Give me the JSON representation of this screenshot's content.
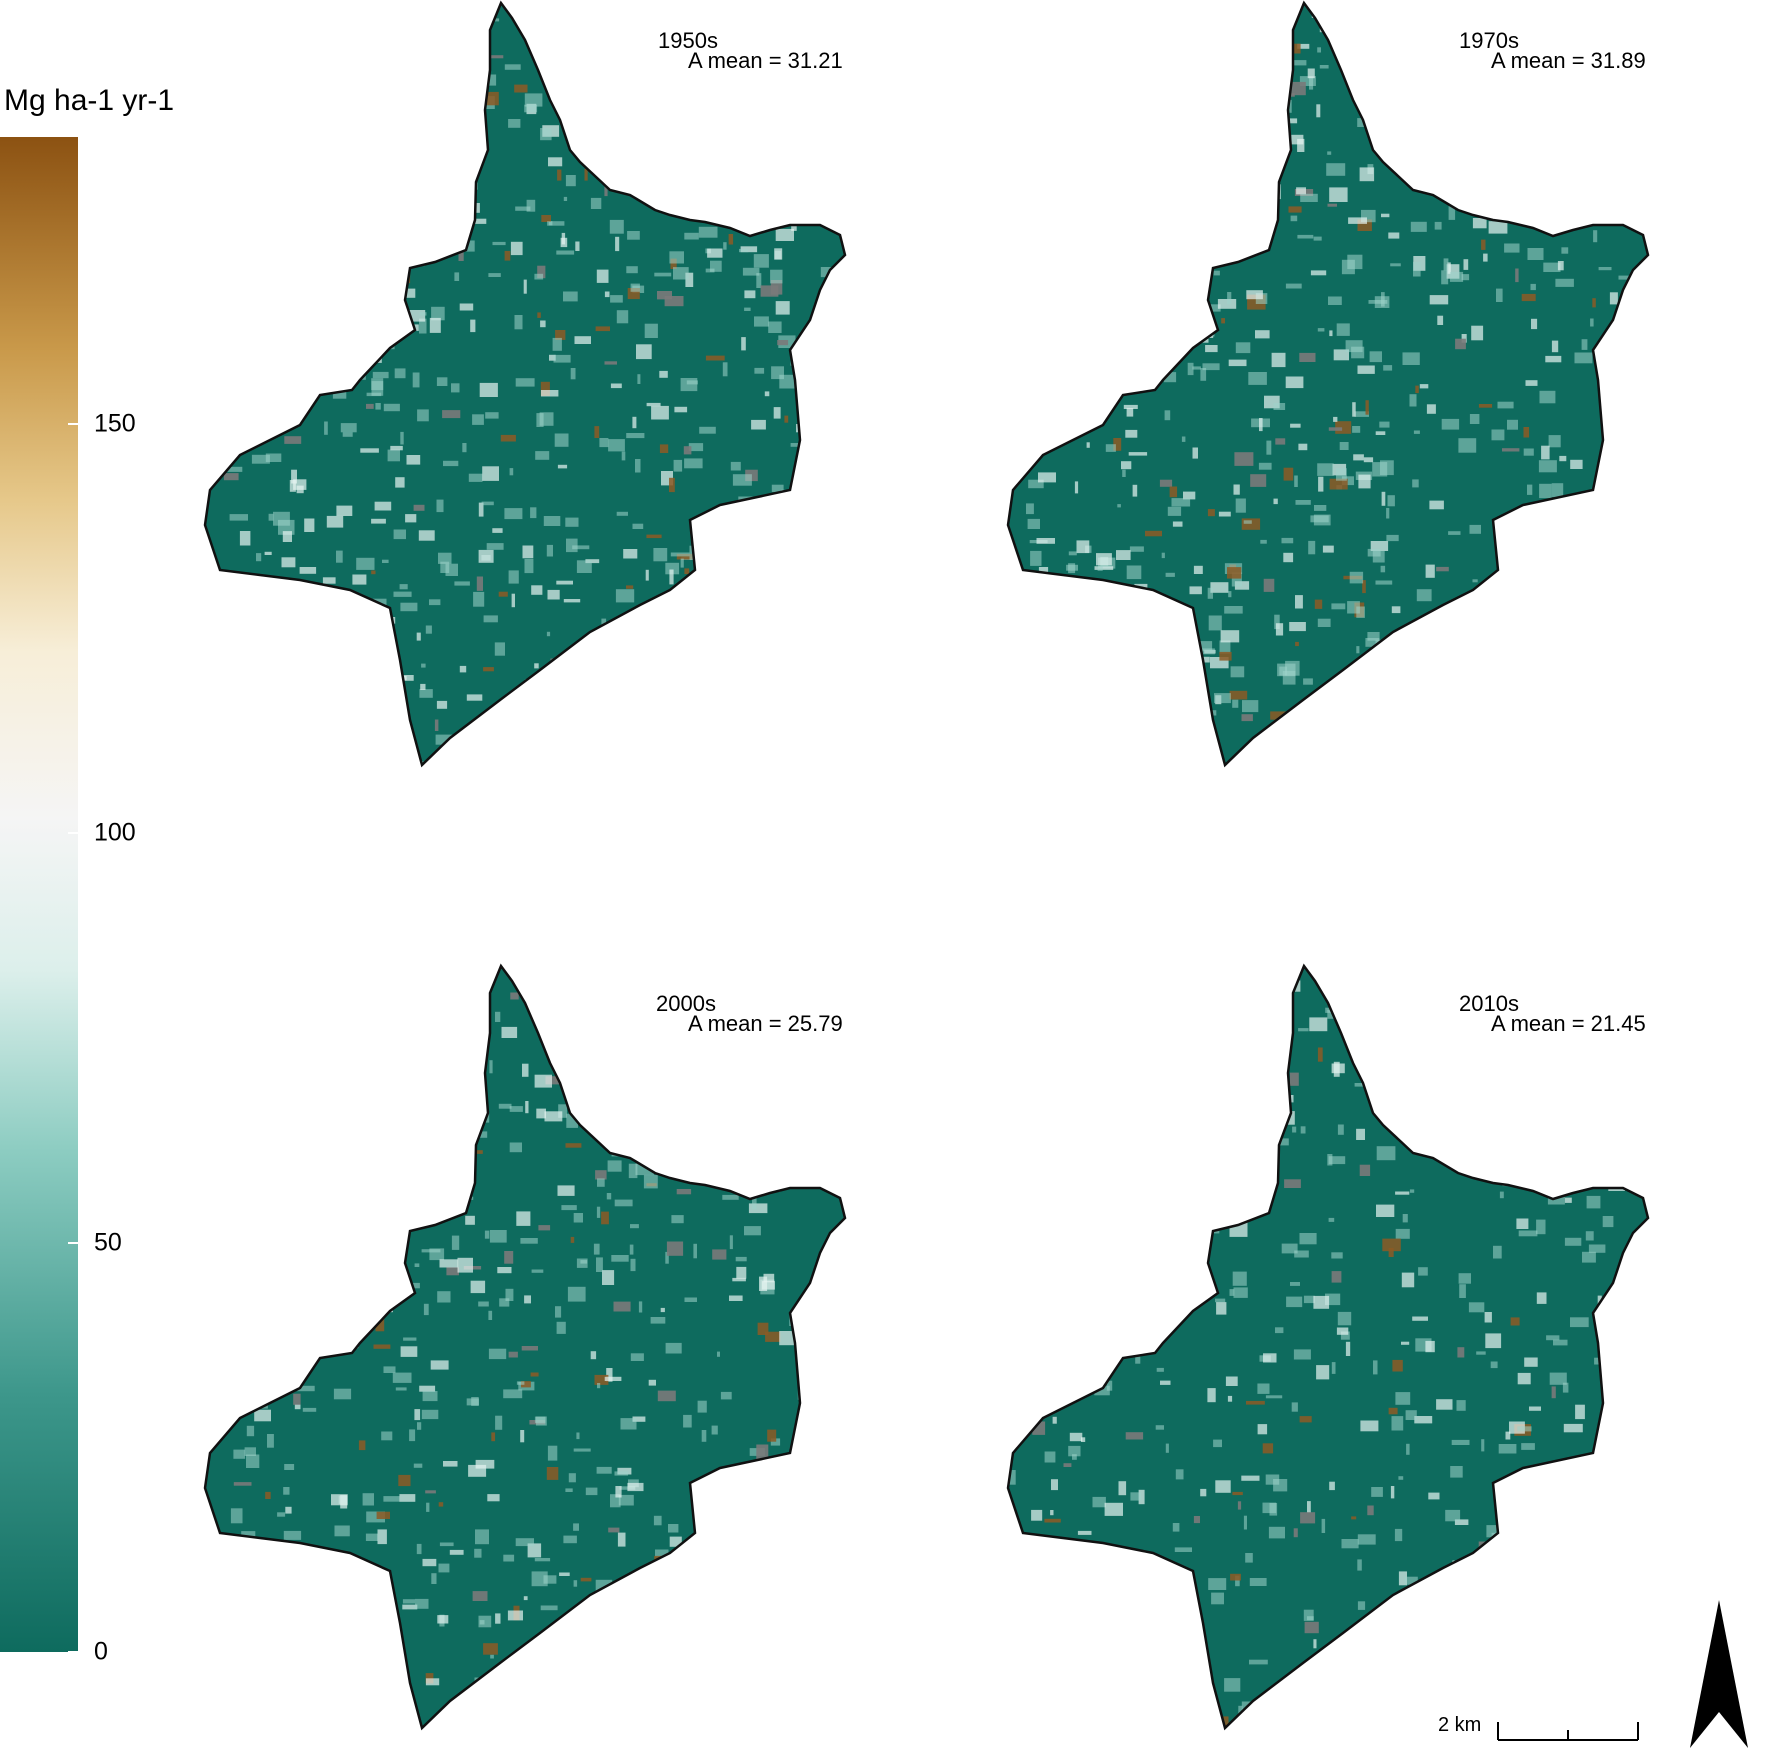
{
  "legend": {
    "title": "Mg ha-1 yr-1",
    "ticks": [
      {
        "label": "150",
        "value": 150
      },
      {
        "label": "100",
        "value": 100
      },
      {
        "label": "50",
        "value": 50
      },
      {
        "label": "0",
        "value": 0
      }
    ],
    "min": 0,
    "max": 185,
    "colors": [
      "#0e6b5e",
      "#3d978b",
      "#8cccc1",
      "#f5f5f5",
      "#e6c88a",
      "#8c5212"
    ]
  },
  "panels": [
    {
      "title": "1950s",
      "mean_label": "A mean = 31.21",
      "mean": 31.21
    },
    {
      "title": "1970s",
      "mean_label": "A mean = 31.89",
      "mean": 31.89
    },
    {
      "title": "2000s",
      "mean_label": "A mean = 25.79",
      "mean": 25.79
    },
    {
      "title": "2010s",
      "mean_label": "A mean = 21.45",
      "mean": 21.45
    }
  ],
  "map_colors": {
    "base": "#0e6b5e",
    "light": "#9fd4cb",
    "pale": "#e6f4f1",
    "hot": "#8c5a25",
    "grey": "#7a7a7a",
    "outline": "#111111"
  },
  "scale_bar": {
    "label": "2 km"
  },
  "north_arrow": {
    "label": "N"
  }
}
